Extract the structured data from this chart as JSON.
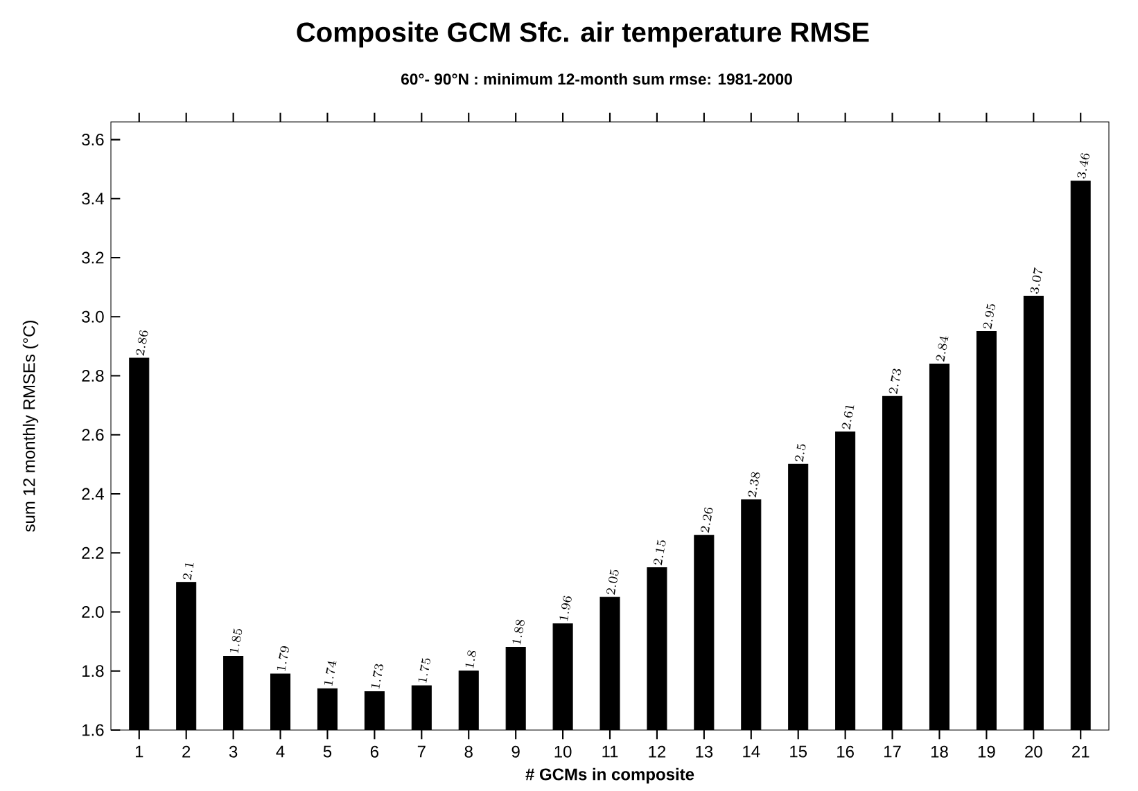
{
  "chart_data": {
    "type": "bar",
    "title": "Composite GCM Sfc. air temperature RMSE",
    "subtitle": "60°- 90°N : minimum 12-month sum rmse: 1981-2000",
    "xlabel": "# GCMs in composite",
    "ylabel": "sum 12 monthly RMSEs (°C)",
    "categories": [
      "1",
      "2",
      "3",
      "4",
      "5",
      "6",
      "7",
      "8",
      "9",
      "10",
      "11",
      "12",
      "13",
      "14",
      "15",
      "16",
      "17",
      "18",
      "19",
      "20",
      "21"
    ],
    "values": [
      2.86,
      2.1,
      1.85,
      1.79,
      1.74,
      1.73,
      1.75,
      1.8,
      1.88,
      1.96,
      2.05,
      2.15,
      2.26,
      2.38,
      2.5,
      2.61,
      2.73,
      2.84,
      2.95,
      3.07,
      3.46
    ],
    "color": "#000000",
    "ylim": [
      1.6,
      3.66
    ],
    "yticks": [
      1.6,
      1.8,
      {
        "value": 2.0,
        "label": "2.0"
      },
      2.2,
      2.4,
      2.6,
      2.8,
      {
        "value": 3.0,
        "label": "3.0"
      },
      3.2,
      3.4,
      3.6
    ],
    "data_labels": true,
    "grid": false
  }
}
